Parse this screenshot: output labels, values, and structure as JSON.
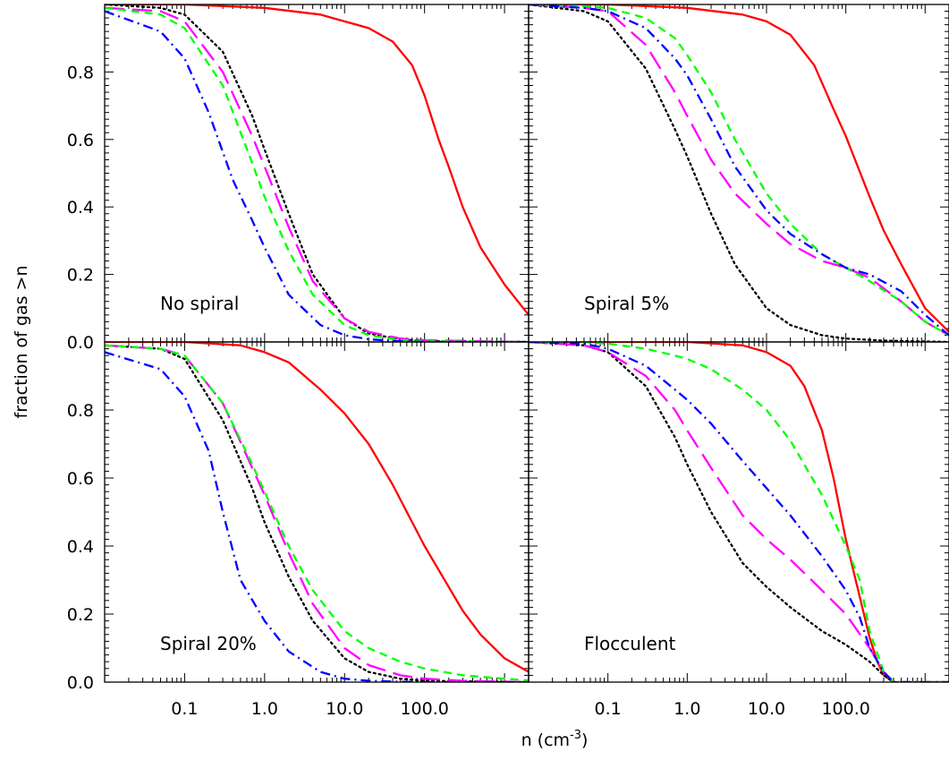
{
  "chart_data": {
    "type": "line",
    "xscale": "log",
    "xlim": [
      0.01,
      2000
    ],
    "ylim": [
      0,
      1
    ],
    "xlabel": "n (cm",
    "xlabel_sup": "-3",
    "xlabel_close": ")",
    "ylabel": "fraction of gas >n",
    "xticks": [
      {
        "value": 0.1,
        "label": "0.1"
      },
      {
        "value": 1,
        "label": "1.0"
      },
      {
        "value": 10,
        "label": "10.0"
      },
      {
        "value": 100,
        "label": "100.0"
      }
    ],
    "yticks": [
      {
        "value": 0.0,
        "label": "0.0"
      },
      {
        "value": 0.2,
        "label": "0.2"
      },
      {
        "value": 0.4,
        "label": "0.4"
      },
      {
        "value": 0.6,
        "label": "0.6"
      },
      {
        "value": 0.8,
        "label": "0.8"
      }
    ],
    "series_styles": [
      {
        "color": "#ff0000",
        "dash": "solid"
      },
      {
        "color": "#000000",
        "dash": "dotted"
      },
      {
        "color": "#ff00ff",
        "dash": "long-dash"
      },
      {
        "color": "#00ff00",
        "dash": "short-dash"
      },
      {
        "color": "#0000ff",
        "dash": "dash-dot"
      }
    ],
    "panels": [
      {
        "label": "No spiral",
        "position": "top-left",
        "series": [
          {
            "x": [
              0.01,
              0.1,
              1,
              5,
              10,
              20,
              40,
              70,
              100,
              150,
              200,
              300,
              500,
              1000,
              2000
            ],
            "y": [
              1.0,
              1.0,
              0.99,
              0.97,
              0.95,
              0.93,
              0.89,
              0.82,
              0.73,
              0.6,
              0.52,
              0.4,
              0.28,
              0.17,
              0.08
            ]
          },
          {
            "x": [
              0.01,
              0.05,
              0.1,
              0.3,
              0.7,
              1,
              2,
              4,
              10,
              20,
              50,
              100,
              2000
            ],
            "y": [
              1.0,
              0.99,
              0.97,
              0.86,
              0.67,
              0.57,
              0.38,
              0.2,
              0.07,
              0.025,
              0.008,
              0.003,
              0.0
            ]
          },
          {
            "x": [
              0.01,
              0.05,
              0.1,
              0.3,
              0.7,
              1,
              2,
              4,
              10,
              20,
              50,
              100,
              2000
            ],
            "y": [
              0.99,
              0.98,
              0.95,
              0.8,
              0.61,
              0.52,
              0.34,
              0.18,
              0.07,
              0.03,
              0.01,
              0.005,
              0.0
            ]
          },
          {
            "x": [
              0.01,
              0.05,
              0.1,
              0.3,
              0.7,
              1,
              2,
              4,
              10,
              20,
              50,
              100,
              2000
            ],
            "y": [
              0.99,
              0.97,
              0.93,
              0.76,
              0.53,
              0.43,
              0.27,
              0.14,
              0.05,
              0.02,
              0.006,
              0.002,
              0.0
            ]
          },
          {
            "x": [
              0.01,
              0.05,
              0.1,
              0.2,
              0.4,
              0.7,
              1,
              2,
              5,
              10,
              20,
              50,
              100,
              2000
            ],
            "y": [
              0.98,
              0.92,
              0.84,
              0.68,
              0.48,
              0.36,
              0.28,
              0.14,
              0.05,
              0.02,
              0.008,
              0.002,
              0.0,
              0.0
            ]
          }
        ]
      },
      {
        "label": "Spiral 5%",
        "position": "top-right",
        "series": [
          {
            "x": [
              0.01,
              0.1,
              1,
              5,
              10,
              20,
              40,
              70,
              100,
              200,
              300,
              500,
              1000,
              2000
            ],
            "y": [
              1.0,
              1.0,
              0.99,
              0.97,
              0.95,
              0.91,
              0.82,
              0.69,
              0.61,
              0.43,
              0.33,
              0.23,
              0.1,
              0.03
            ]
          },
          {
            "x": [
              0.01,
              0.05,
              0.1,
              0.3,
              0.7,
              1,
              2,
              4,
              10,
              20,
              50,
              100,
              300,
              2000
            ],
            "y": [
              1.0,
              0.98,
              0.95,
              0.81,
              0.63,
              0.55,
              0.38,
              0.23,
              0.1,
              0.05,
              0.02,
              0.01,
              0.004,
              0.0
            ]
          },
          {
            "x": [
              0.01,
              0.05,
              0.1,
              0.3,
              0.7,
              1,
              2,
              4,
              10,
              20,
              50,
              100,
              200,
              500,
              1000,
              2000
            ],
            "y": [
              1.0,
              0.99,
              0.98,
              0.88,
              0.74,
              0.67,
              0.54,
              0.44,
              0.35,
              0.29,
              0.24,
              0.22,
              0.19,
              0.12,
              0.06,
              0.02
            ]
          },
          {
            "x": [
              0.01,
              0.05,
              0.1,
              0.3,
              0.7,
              1,
              2,
              4,
              10,
              20,
              50,
              100,
              200,
              500,
              1000,
              2000
            ],
            "y": [
              1.0,
              0.995,
              0.99,
              0.96,
              0.9,
              0.85,
              0.74,
              0.6,
              0.44,
              0.35,
              0.26,
              0.22,
              0.18,
              0.12,
              0.06,
              0.02
            ]
          },
          {
            "x": [
              0.01,
              0.05,
              0.1,
              0.3,
              0.7,
              1,
              2,
              4,
              10,
              20,
              50,
              100,
              200,
              500,
              1000,
              2000
            ],
            "y": [
              1.0,
              0.99,
              0.98,
              0.93,
              0.84,
              0.79,
              0.66,
              0.52,
              0.39,
              0.32,
              0.26,
              0.22,
              0.2,
              0.15,
              0.08,
              0.02
            ]
          }
        ]
      },
      {
        "label": "Spiral 20%",
        "position": "bottom-left",
        "series": [
          {
            "x": [
              0.01,
              0.1,
              0.5,
              1,
              2,
              5,
              10,
              20,
              40,
              70,
              100,
              200,
              300,
              500,
              1000,
              2000
            ],
            "y": [
              1.0,
              1.0,
              0.99,
              0.97,
              0.94,
              0.86,
              0.79,
              0.7,
              0.58,
              0.47,
              0.4,
              0.28,
              0.21,
              0.14,
              0.07,
              0.03
            ]
          },
          {
            "x": [
              0.01,
              0.05,
              0.1,
              0.3,
              0.7,
              1,
              2,
              4,
              10,
              20,
              50,
              100,
              2000
            ],
            "y": [
              0.99,
              0.98,
              0.95,
              0.77,
              0.57,
              0.47,
              0.31,
              0.18,
              0.07,
              0.03,
              0.01,
              0.004,
              0.0
            ]
          },
          {
            "x": [
              0.01,
              0.05,
              0.1,
              0.3,
              0.7,
              1,
              2,
              4,
              10,
              20,
              50,
              100,
              300,
              2000
            ],
            "y": [
              0.99,
              0.98,
              0.96,
              0.82,
              0.63,
              0.55,
              0.38,
              0.23,
              0.1,
              0.05,
              0.02,
              0.01,
              0.004,
              0.0
            ]
          },
          {
            "x": [
              0.01,
              0.05,
              0.1,
              0.3,
              0.7,
              1,
              2,
              4,
              10,
              20,
              50,
              100,
              300,
              1000,
              2000
            ],
            "y": [
              0.99,
              0.98,
              0.96,
              0.82,
              0.64,
              0.56,
              0.4,
              0.27,
              0.15,
              0.1,
              0.06,
              0.04,
              0.02,
              0.01,
              0.005
            ]
          },
          {
            "x": [
              0.01,
              0.05,
              0.1,
              0.2,
              0.3,
              0.5,
              1,
              2,
              5,
              10,
              20,
              50,
              100,
              2000
            ],
            "y": [
              0.97,
              0.92,
              0.84,
              0.68,
              0.5,
              0.3,
              0.18,
              0.09,
              0.03,
              0.01,
              0.004,
              0.001,
              0.0,
              0.0
            ]
          }
        ]
      },
      {
        "label": "Flocculent",
        "position": "bottom-right",
        "series": [
          {
            "x": [
              0.01,
              0.1,
              1,
              5,
              10,
              20,
              30,
              50,
              70,
              100,
              150,
              200,
              250,
              300,
              400,
              2000
            ],
            "y": [
              1.0,
              1.0,
              1.0,
              0.99,
              0.97,
              0.93,
              0.87,
              0.74,
              0.6,
              0.42,
              0.25,
              0.13,
              0.06,
              0.02,
              0.0,
              0.0
            ]
          },
          {
            "x": [
              0.01,
              0.05,
              0.1,
              0.3,
              0.7,
              1,
              2,
              5,
              10,
              20,
              50,
              100,
              200,
              300,
              400,
              2000
            ],
            "y": [
              1.0,
              0.99,
              0.97,
              0.87,
              0.72,
              0.64,
              0.5,
              0.35,
              0.28,
              0.22,
              0.15,
              0.11,
              0.06,
              0.02,
              0.0,
              0.0
            ]
          },
          {
            "x": [
              0.01,
              0.05,
              0.1,
              0.3,
              0.7,
              1,
              2,
              5,
              10,
              20,
              50,
              100,
              200,
              300,
              400,
              2000
            ],
            "y": [
              1.0,
              0.99,
              0.97,
              0.9,
              0.8,
              0.74,
              0.63,
              0.49,
              0.42,
              0.36,
              0.27,
              0.2,
              0.1,
              0.03,
              0.0,
              0.0
            ]
          },
          {
            "x": [
              0.01,
              0.05,
              0.1,
              0.3,
              0.7,
              1,
              2,
              5,
              10,
              20,
              50,
              100,
              150,
              200,
              300,
              400,
              2000
            ],
            "y": [
              1.0,
              1.0,
              0.995,
              0.98,
              0.96,
              0.95,
              0.92,
              0.86,
              0.8,
              0.71,
              0.55,
              0.4,
              0.3,
              0.15,
              0.03,
              0.0,
              0.0
            ]
          },
          {
            "x": [
              0.01,
              0.05,
              0.1,
              0.3,
              0.7,
              1,
              2,
              5,
              10,
              20,
              50,
              100,
              150,
              200,
              300,
              400,
              2000
            ],
            "y": [
              1.0,
              0.995,
              0.98,
              0.93,
              0.86,
              0.83,
              0.76,
              0.65,
              0.57,
              0.49,
              0.37,
              0.27,
              0.19,
              0.1,
              0.03,
              0.0,
              0.0
            ]
          }
        ]
      }
    ]
  }
}
